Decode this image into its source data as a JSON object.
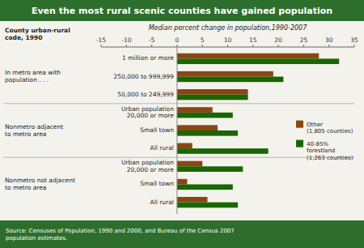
{
  "chart_data": {
    "type": "bar",
    "orientation": "horizontal",
    "title": "Even the most rural scenic counties have gained population",
    "subtitle": "Median percent change in population,1990-2007",
    "source": "Source: Censuses of Population, 1990 and 2000, and Bureau of the Census 2007\npopulation estimates.",
    "ylabel": "County urban-rural\ncode, 1990",
    "sections": [
      "In metro area with\npopulation . . .",
      "Nonmetro adjacent\nto metro area",
      "Nonmetro not adjacent\nto metro area"
    ],
    "categories": [
      "1 million or more",
      "250,000 to 999,999",
      "50,000 to 249,999",
      "Urban population\n20,000 or more",
      "Small town",
      "All rural",
      "Urban population\n20,000 or more",
      "Small town",
      "All rural"
    ],
    "series": [
      {
        "name": "Other\n(1,805 counties)",
        "color": "#8B4513",
        "values": [
          28,
          19,
          14,
          7,
          8,
          3,
          5,
          2,
          6
        ]
      },
      {
        "name": "40-85%\nforestland\n(1,263 counties)",
        "color": "#1a6600",
        "values": [
          32,
          21,
          14,
          11,
          12,
          18,
          13,
          11,
          12
        ]
      }
    ],
    "xlim": [
      -15,
      35
    ],
    "xticks": [
      -15,
      -10,
      -5,
      0,
      5,
      10,
      15,
      20,
      25,
      30,
      35
    ],
    "grid": false,
    "legend": "right"
  }
}
